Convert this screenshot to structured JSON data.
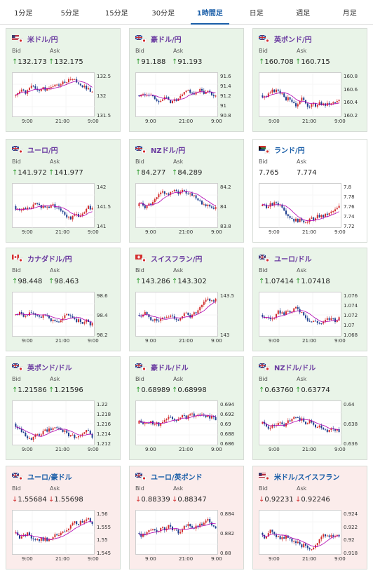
{
  "tabs": [
    {
      "label": "1分足",
      "active": false
    },
    {
      "label": "5分足",
      "active": false
    },
    {
      "label": "15分足",
      "active": false
    },
    {
      "label": "30分足",
      "active": false
    },
    {
      "label": "1時間足",
      "active": true
    },
    {
      "label": "日足",
      "active": false
    },
    {
      "label": "週足",
      "active": false
    },
    {
      "label": "月足",
      "active": false
    }
  ],
  "bid_label": "Bid",
  "ask_label": "Ask",
  "x_ticks": [
    "9:00",
    "21:00",
    "9:00"
  ],
  "colors": {
    "up_bg": "#e9f4e8",
    "flat_bg": "#ffffff",
    "down_bg": "#fbeceb",
    "bull": "#d32f2f",
    "bear": "#1f3f8f",
    "ma": "#b000b0"
  },
  "cards": [
    {
      "pair": "米ドル/円",
      "flag": "us-jp-flag",
      "bid": "132.173",
      "ask": "132.175",
      "dir": "up",
      "yticks": [
        "132.5",
        "132",
        "131.5"
      ],
      "seed": 1
    },
    {
      "pair": "豪ドル/円",
      "flag": "au-jp-flag",
      "bid": "91.188",
      "ask": "91.193",
      "dir": "up",
      "yticks": [
        "91.6",
        "91.4",
        "91.2",
        "91",
        "90.8"
      ],
      "seed": 2
    },
    {
      "pair": "英ポンド/円",
      "flag": "gb-jp-flag",
      "bid": "160.708",
      "ask": "160.715",
      "dir": "up",
      "yticks": [
        "160.8",
        "160.6",
        "160.4",
        "160.2"
      ],
      "seed": 3
    },
    {
      "pair": "ユーロ/円",
      "flag": "eu-jp-flag",
      "bid": "141.972",
      "ask": "141.977",
      "dir": "up",
      "yticks": [
        "142",
        "141.5",
        "141"
      ],
      "seed": 4
    },
    {
      "pair": "NZドル/円",
      "flag": "nz-jp-flag",
      "bid": "84.277",
      "ask": "84.289",
      "dir": "up",
      "yticks": [
        "84.2",
        "84",
        "83.8"
      ],
      "seed": 5
    },
    {
      "pair": "ランド/円",
      "flag": "za-jp-flag",
      "bid": "7.765",
      "ask": "7.774",
      "dir": "flat",
      "yticks": [
        "7.8",
        "7.78",
        "7.76",
        "7.74",
        "7.72"
      ],
      "seed": 6
    },
    {
      "pair": "カナダドル/円",
      "flag": "ca-jp-flag",
      "bid": "98.448",
      "ask": "98.463",
      "dir": "up",
      "yticks": [
        "98.6",
        "98.4",
        "98.2"
      ],
      "seed": 7
    },
    {
      "pair": "スイスフラン/円",
      "flag": "ch-jp-flag",
      "bid": "143.286",
      "ask": "143.302",
      "dir": "up",
      "yticks": [
        "143.5",
        "143"
      ],
      "seed": 8
    },
    {
      "pair": "ユーロ/ドル",
      "flag": "eu-us-flag",
      "bid": "1.07414",
      "ask": "1.07418",
      "dir": "up",
      "yticks": [
        "1.076",
        "1.074",
        "1.072",
        "1.07",
        "1.068"
      ],
      "seed": 9
    },
    {
      "pair": "英ポンド/ドル",
      "flag": "gb-us-flag",
      "bid": "1.21586",
      "ask": "1.21596",
      "dir": "up",
      "yticks": [
        "1.22",
        "1.218",
        "1.216",
        "1.214",
        "1.212"
      ],
      "seed": 10
    },
    {
      "pair": "豪ドル/ドル",
      "flag": "au-us-flag",
      "bid": "0.68989",
      "ask": "0.68998",
      "dir": "up",
      "yticks": [
        "0.694",
        "0.692",
        "0.69",
        "0.688",
        "0.686"
      ],
      "seed": 11
    },
    {
      "pair": "NZドル/ドル",
      "flag": "nz-us-flag",
      "bid": "0.63760",
      "ask": "0.63774",
      "dir": "up",
      "yticks": [
        "0.64",
        "0.638",
        "0.636"
      ],
      "seed": 12
    },
    {
      "pair": "ユーロ/豪ドル",
      "flag": "eu-au-flag",
      "bid": "1.55684",
      "ask": "1.55698",
      "dir": "down",
      "yticks": [
        "1.56",
        "1.555",
        "1.55",
        "1.545"
      ],
      "seed": 13
    },
    {
      "pair": "ユーロ/英ポンド",
      "flag": "eu-gb-flag",
      "bid": "0.88339",
      "ask": "0.88347",
      "dir": "down",
      "yticks": [
        "0.884",
        "0.882",
        "0.88"
      ],
      "seed": 14
    },
    {
      "pair": "米ドル/スイスフラン",
      "flag": "us-ch-flag",
      "bid": "0.92231",
      "ask": "0.92246",
      "dir": "down",
      "yticks": [
        "0.924",
        "0.922",
        "0.92",
        "0.918"
      ],
      "seed": 15
    }
  ]
}
